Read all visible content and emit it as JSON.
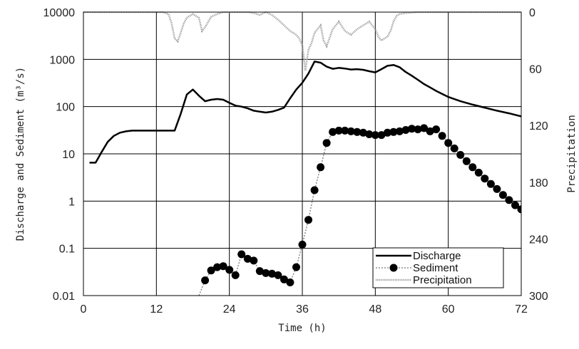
{
  "chart_data": {
    "type": "line",
    "x_axis": {
      "label": "Time (h)",
      "range": [
        0,
        72
      ],
      "ticks": [
        0,
        12,
        24,
        36,
        48,
        60,
        72
      ],
      "tick_labels": [
        "0",
        "12",
        "24",
        "36",
        "48",
        "60",
        "72"
      ]
    },
    "y_axis_left": {
      "label": "Discharge and Sediment (m³/s)",
      "scale": "log",
      "range": [
        0.01,
        10000
      ],
      "ticks": [
        0.01,
        0.1,
        1,
        10,
        100,
        1000,
        10000
      ],
      "tick_labels": [
        "0.01",
        "0.1",
        "1",
        "10",
        "100",
        "1000",
        "10000"
      ]
    },
    "y_axis_right": {
      "label": "Precipitation",
      "scale": "linear",
      "inverted": true,
      "range": [
        0,
        300
      ],
      "ticks": [
        0,
        60,
        120,
        180,
        240,
        300
      ],
      "tick_labels": [
        "0",
        "60",
        "120",
        "180",
        "240",
        "300"
      ]
    },
    "grid": true,
    "legend": {
      "placement": "bottom-right",
      "entries": [
        "Discharge",
        "Sediment",
        "Precipitation"
      ]
    },
    "series": [
      {
        "name": "Discharge",
        "axis": "left",
        "style": "solid-line",
        "color": "#000000",
        "x": [
          1,
          2,
          3,
          4,
          5,
          6,
          7,
          8,
          10,
          12,
          14,
          15,
          16,
          17,
          18,
          19,
          20,
          21,
          22,
          23,
          24,
          25,
          26,
          27,
          28,
          29,
          30,
          31,
          32,
          33,
          34,
          35,
          36,
          37,
          38,
          39,
          40,
          41,
          42,
          43,
          44,
          45,
          46,
          47,
          48,
          49,
          50,
          51,
          52,
          53,
          54,
          55,
          56,
          57,
          58,
          59,
          60,
          62,
          64,
          66,
          68,
          70,
          72
        ],
        "y": [
          6.5,
          6.5,
          11,
          18,
          24,
          28,
          30,
          31,
          31,
          31,
          31,
          31,
          70,
          180,
          230,
          170,
          130,
          140,
          145,
          140,
          120,
          105,
          100,
          92,
          82,
          78,
          75,
          78,
          85,
          95,
          150,
          230,
          320,
          500,
          900,
          850,
          700,
          630,
          660,
          640,
          610,
          620,
          600,
          560,
          530,
          620,
          730,
          760,
          680,
          540,
          450,
          370,
          300,
          255,
          215,
          185,
          160,
          130,
          110,
          95,
          82,
          72,
          62
        ]
      },
      {
        "name": "Sediment",
        "axis": "left",
        "style": "dotted-line-with-circles",
        "color": "#000000",
        "x": [
          19,
          20,
          21,
          22,
          23,
          24,
          25,
          26,
          27,
          28,
          29,
          30,
          31,
          32,
          33,
          34,
          35,
          36,
          37,
          38,
          39,
          40,
          41,
          42,
          43,
          44,
          45,
          46,
          47,
          48,
          49,
          50,
          51,
          52,
          53,
          54,
          55,
          56,
          57,
          58,
          59,
          60,
          61,
          62,
          63,
          64,
          65,
          66,
          67,
          68,
          69,
          70,
          71,
          72
        ],
        "y": [
          0.01,
          0.021,
          0.034,
          0.04,
          0.042,
          0.035,
          0.027,
          0.075,
          0.06,
          0.055,
          0.033,
          0.03,
          0.029,
          0.027,
          0.022,
          0.019,
          0.04,
          0.12,
          0.4,
          1.7,
          5.2,
          17,
          29,
          31,
          31,
          30,
          29,
          28,
          26,
          25,
          25,
          28,
          29,
          30,
          32,
          34,
          33,
          35,
          30,
          33,
          24,
          17,
          13,
          9.5,
          7,
          5.2,
          4,
          3,
          2.3,
          1.8,
          1.35,
          1.05,
          0.82,
          0.67
        ],
        "y_extra_note": ""
      },
      {
        "name": "Precipitation",
        "axis": "right",
        "style": "gray-dotted-line",
        "color": "#999999",
        "x": [
          0,
          10,
          13,
          14,
          14.5,
          15,
          15.5,
          16,
          16.5,
          17,
          18,
          19,
          19.5,
          20,
          21,
          22,
          23,
          24,
          25,
          26,
          27,
          28,
          29,
          30,
          31,
          32,
          33,
          34,
          35,
          35.5,
          36,
          36.5,
          37,
          37.5,
          38,
          38.5,
          39,
          39.5,
          40,
          41,
          42,
          43,
          44,
          45,
          46,
          47,
          48,
          48.5,
          49,
          49.5,
          50,
          50.5,
          51,
          51.5,
          52,
          53,
          55,
          57,
          60,
          65,
          72
        ],
        "y": [
          0,
          0,
          0,
          2,
          12,
          28,
          31,
          22,
          12,
          6,
          2,
          6,
          20,
          16,
          5,
          2,
          0,
          0,
          0,
          0,
          0,
          1,
          3,
          0,
          3,
          8,
          14,
          20,
          24,
          28,
          35,
          62,
          40,
          33,
          22,
          18,
          14,
          30,
          36,
          18,
          10,
          20,
          24,
          18,
          14,
          10,
          18,
          26,
          30,
          28,
          26,
          20,
          10,
          4,
          2,
          1,
          0,
          0,
          0,
          0,
          0
        ]
      }
    ]
  }
}
